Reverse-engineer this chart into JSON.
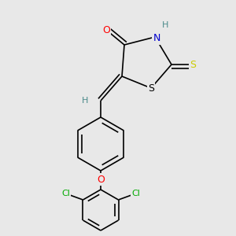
{
  "bg_color": "#e8e8e8",
  "bond_color": "#000000",
  "atom_colors": {
    "O": "#ff0000",
    "N": "#0000cd",
    "S_thioxo": "#cccc00",
    "S_ring": "#000000",
    "Cl": "#00aa00",
    "H": "#4a8a8a",
    "C": "#000000"
  },
  "line_width": 1.2,
  "figsize": [
    3.0,
    3.0
  ],
  "dpi": 100
}
